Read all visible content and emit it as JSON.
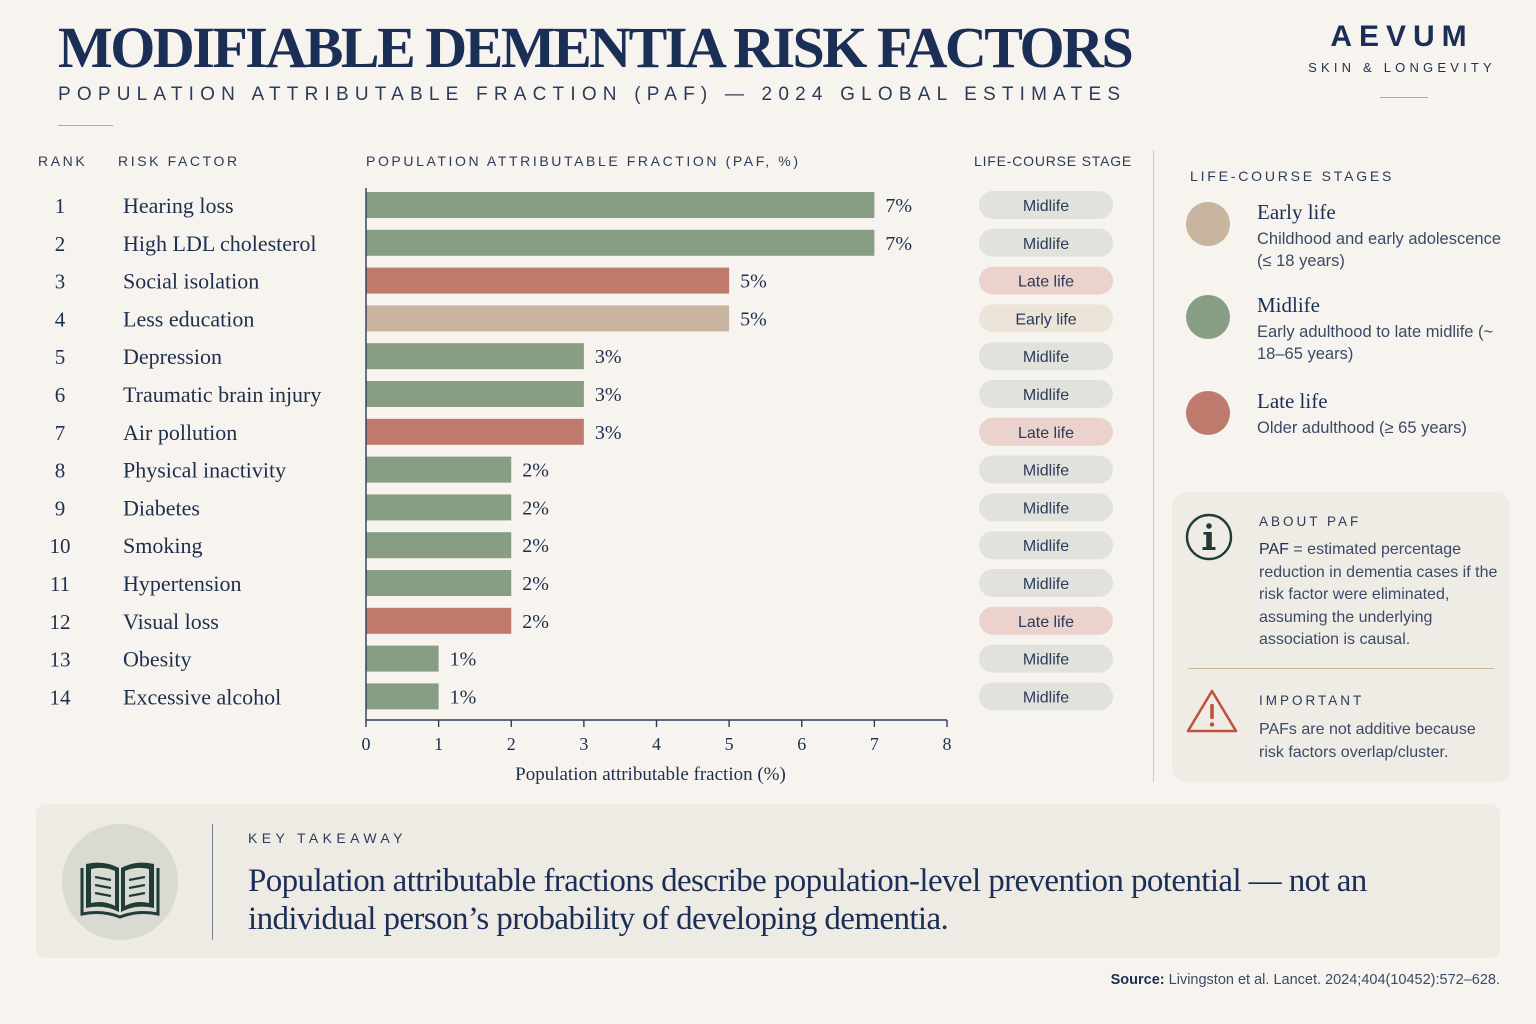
{
  "header": {
    "title": "MODIFIABLE DEMENTIA RISK FACTORS",
    "subtitle": "POPULATION ATTRIBUTABLE FRACTION (PAF) — 2024 GLOBAL ESTIMATES"
  },
  "brand": {
    "name": "AEVUM",
    "tagline": "SKIN & LONGEVITY"
  },
  "columns": {
    "rank": "RANK",
    "factor": "RISK FACTOR",
    "paf": "POPULATION ATTRIBUTABLE FRACTION (PAF, %)",
    "stage": "LIFE-COURSE STAGE"
  },
  "colors": {
    "early": "#c9b4a0",
    "mid": "#879d84",
    "late": "#be7b6d",
    "pill_mid": "#e1e2dc",
    "pill_late": "#ecd2cc",
    "pill_early": "#ece3d9"
  },
  "chart_data": {
    "type": "bar",
    "orientation": "horizontal",
    "categories": [
      "Hearing loss",
      "High LDL cholesterol",
      "Social isolation",
      "Less education",
      "Depression",
      "Traumatic brain injury",
      "Air pollution",
      "Physical inactivity",
      "Diabetes",
      "Smoking",
      "Hypertension",
      "Visual loss",
      "Obesity",
      "Excessive alcohol"
    ],
    "ranks": [
      "1",
      "2",
      "3",
      "4",
      "5",
      "6",
      "7",
      "8",
      "9",
      "10",
      "11",
      "12",
      "13",
      "14"
    ],
    "values": [
      7,
      7,
      5,
      5,
      3,
      3,
      3,
      2,
      2,
      2,
      2,
      2,
      1,
      1
    ],
    "value_labels": [
      "7%",
      "7%",
      "5%",
      "5%",
      "3%",
      "3%",
      "3%",
      "2%",
      "2%",
      "2%",
      "2%",
      "2%",
      "1%",
      "1%"
    ],
    "stages": [
      "Midlife",
      "Midlife",
      "Late life",
      "Early life",
      "Midlife",
      "Midlife",
      "Late life",
      "Midlife",
      "Midlife",
      "Midlife",
      "Midlife",
      "Late life",
      "Midlife",
      "Midlife"
    ],
    "stage_keys": [
      "mid",
      "mid",
      "late",
      "early",
      "mid",
      "mid",
      "late",
      "mid",
      "mid",
      "mid",
      "mid",
      "late",
      "mid",
      "mid"
    ],
    "xlim": [
      0,
      8
    ],
    "xticks": [
      "0",
      "1",
      "2",
      "3",
      "4",
      "5",
      "6",
      "7",
      "8"
    ],
    "xlabel": "Population attributable fraction (%)",
    "grid": false
  },
  "legend": {
    "heading": "LIFE-COURSE STAGES",
    "items": [
      {
        "name": "Early life",
        "desc": "Childhood and early adolescence (≤ 18 years)"
      },
      {
        "name": "Midlife",
        "desc": "Early adulthood to late midlife (~ 18–65 years)"
      },
      {
        "name": "Late life",
        "desc": "Older adulthood (≥ 65 years)"
      }
    ]
  },
  "about": {
    "heading": "ABOUT PAF",
    "term": "PAF",
    "text": " = estimated percentage reduction in dementia cases if the risk factor were eliminated, assuming the underlying association is causal."
  },
  "important": {
    "heading": "IMPORTANT",
    "text": "PAFs are not additive because risk factors overlap/cluster."
  },
  "takeaway": {
    "heading": "KEY TAKEAWAY",
    "text": "Population attributable fractions describe population-level prevention potential — not an individual person’s probability of developing dementia."
  },
  "source": {
    "label": "Source:",
    "text": " Livingston et al. Lancet. 2024;404(10452):572–628."
  }
}
